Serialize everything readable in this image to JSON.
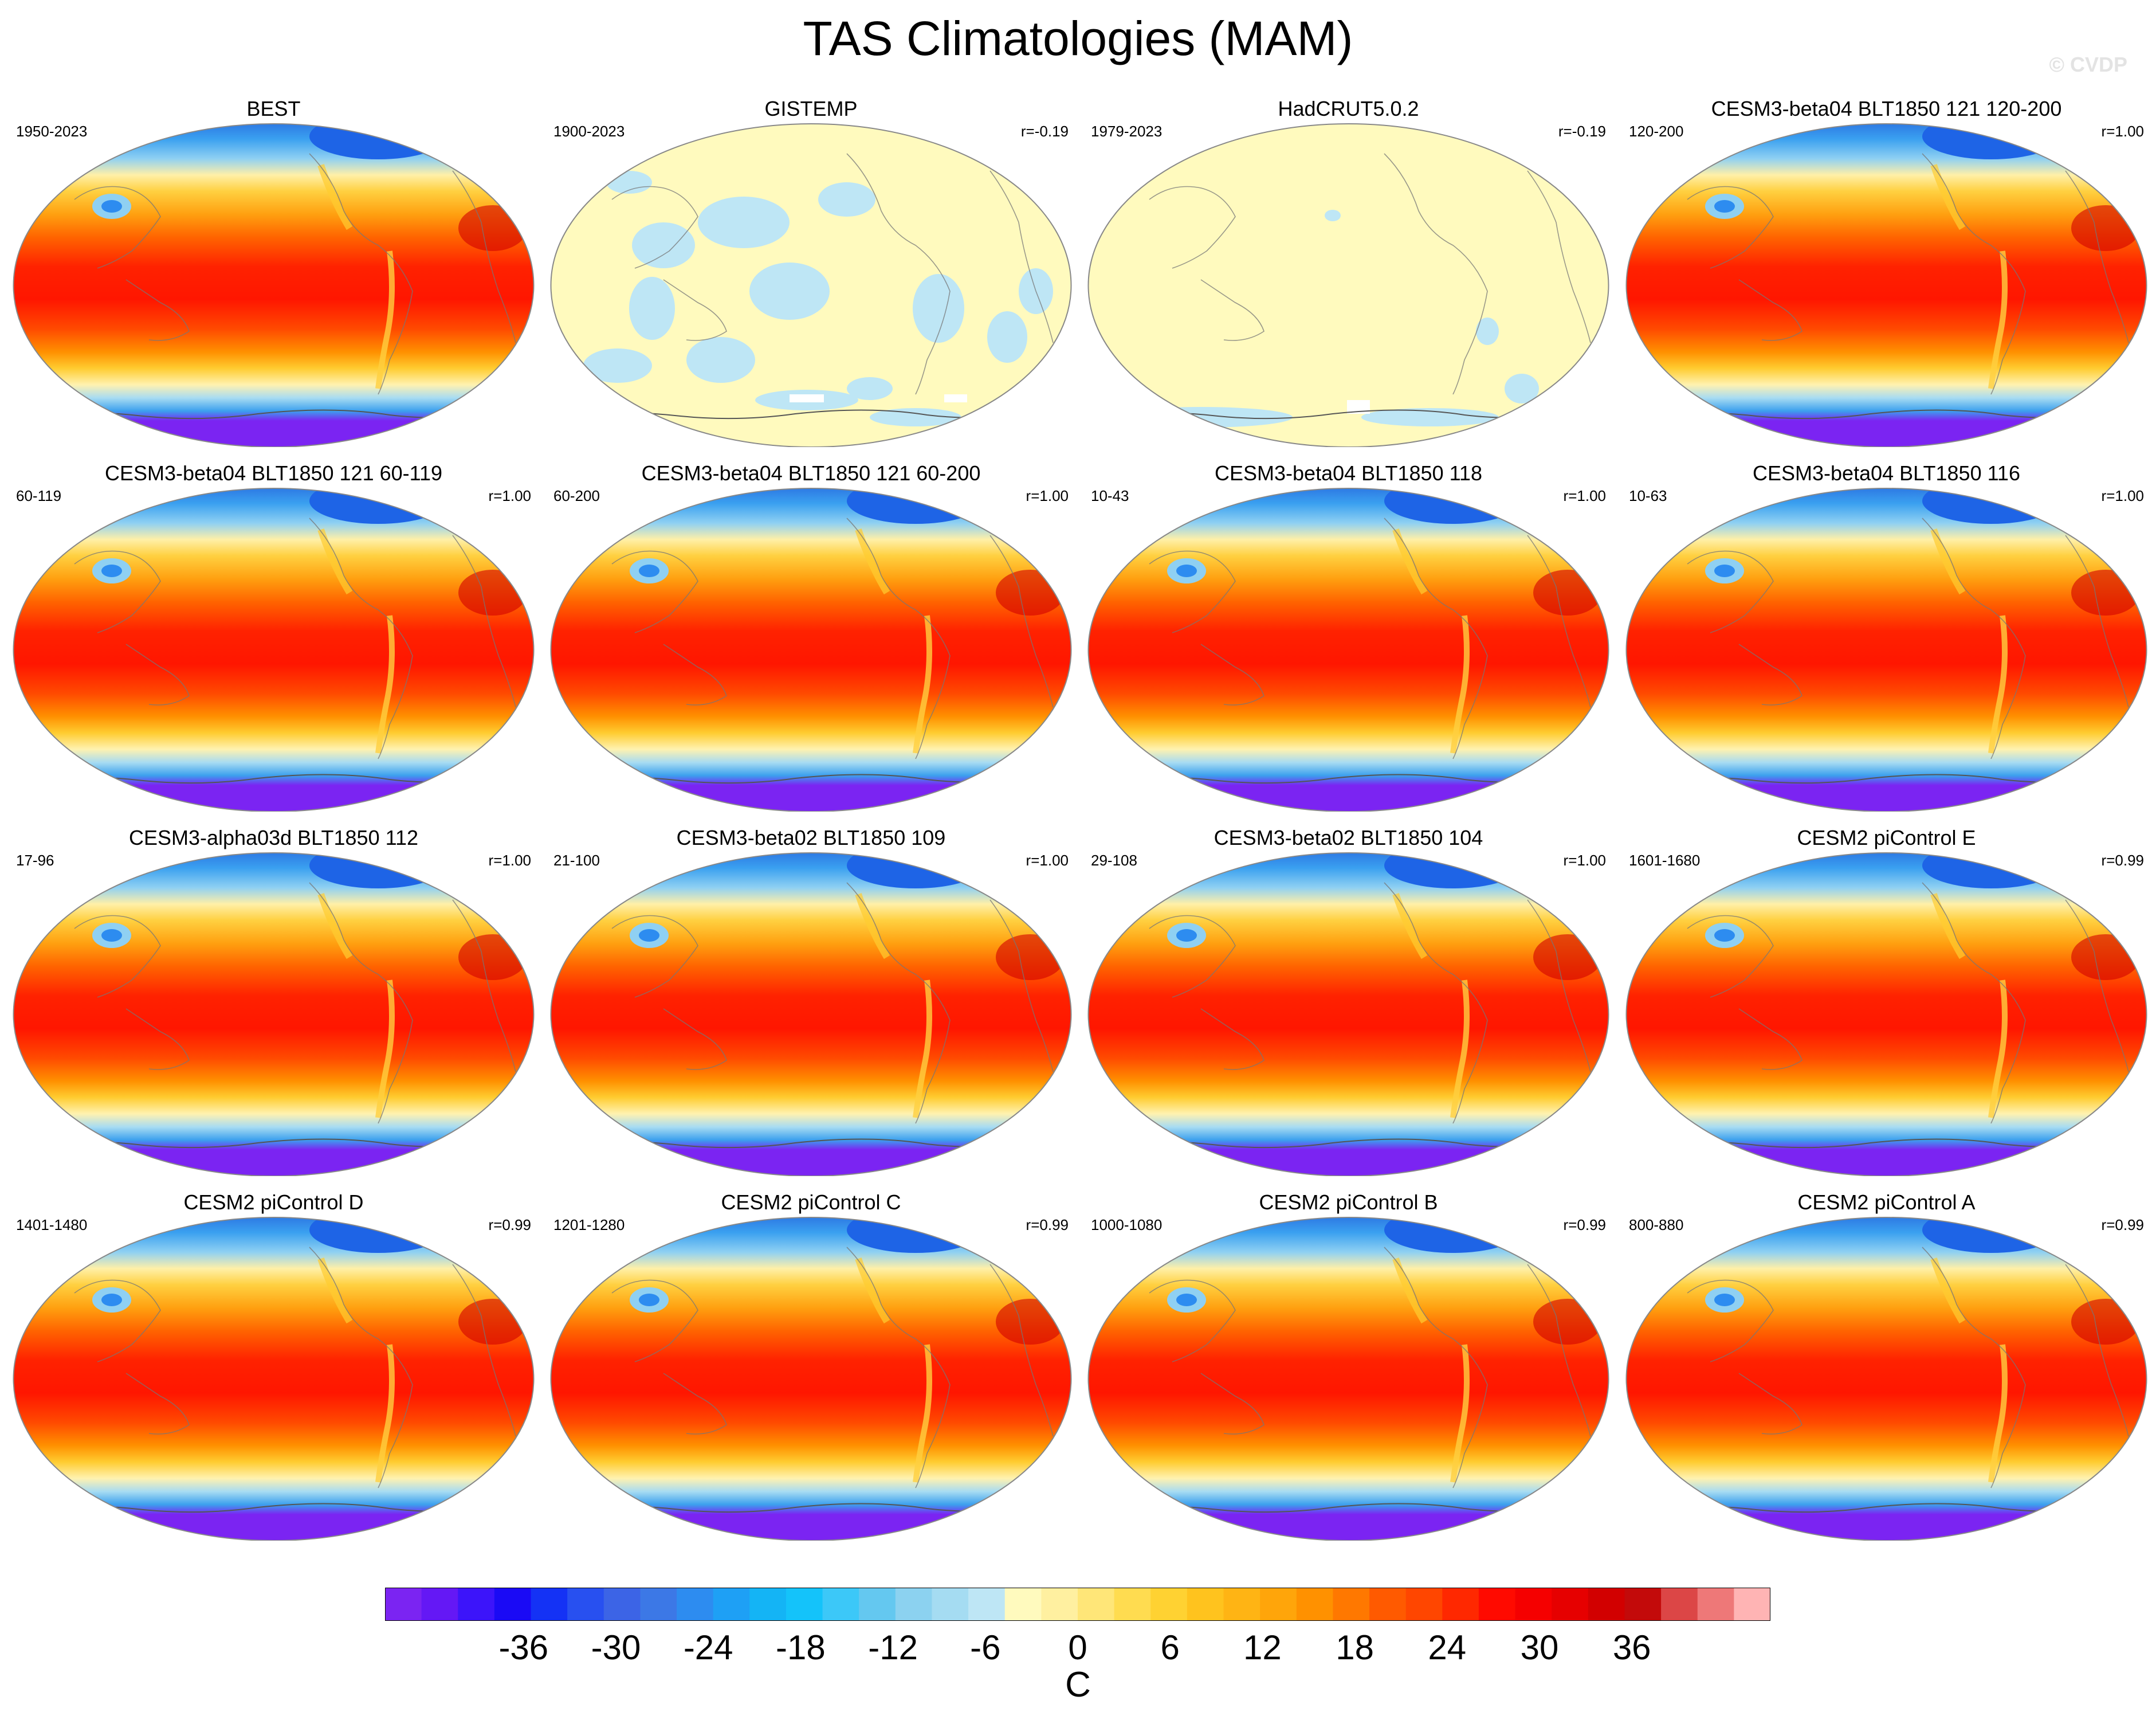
{
  "title": "TAS Climatologies (MAM)",
  "watermark": "© CVDP",
  "panels": [
    {
      "title": "BEST",
      "period": "1950-2023",
      "r": "",
      "style": "model"
    },
    {
      "title": "GISTEMP",
      "period": "1900-2023",
      "r": "r=-0.19",
      "style": "gistemp"
    },
    {
      "title": "HadCRUT5.0.2",
      "period": "1979-2023",
      "r": "r=-0.19",
      "style": "hadcrut"
    },
    {
      "title": "CESM3-beta04 BLT1850 121 120-200",
      "period": "120-200",
      "r": "r=1.00",
      "style": "model"
    },
    {
      "title": "CESM3-beta04 BLT1850 121 60-119",
      "period": "60-119",
      "r": "r=1.00",
      "style": "model"
    },
    {
      "title": "CESM3-beta04 BLT1850 121 60-200",
      "period": "60-200",
      "r": "r=1.00",
      "style": "model"
    },
    {
      "title": "CESM3-beta04 BLT1850 118",
      "period": "10-43",
      "r": "r=1.00",
      "style": "model"
    },
    {
      "title": "CESM3-beta04 BLT1850 116",
      "period": "10-63",
      "r": "r=1.00",
      "style": "model"
    },
    {
      "title": "CESM3-alpha03d BLT1850 112",
      "period": "17-96",
      "r": "r=1.00",
      "style": "model"
    },
    {
      "title": "CESM3-beta02 BLT1850 109",
      "period": "21-100",
      "r": "r=1.00",
      "style": "model"
    },
    {
      "title": "CESM3-beta02 BLT1850 104",
      "period": "29-108",
      "r": "r=1.00",
      "style": "model"
    },
    {
      "title": "CESM2 piControl E",
      "period": "1601-1680",
      "r": "r=0.99",
      "style": "model"
    },
    {
      "title": "CESM2 piControl D",
      "period": "1401-1480",
      "r": "r=0.99",
      "style": "model"
    },
    {
      "title": "CESM2 piControl C",
      "period": "1201-1280",
      "r": "r=0.99",
      "style": "model"
    },
    {
      "title": "CESM2 piControl B",
      "period": "1000-1080",
      "r": "r=0.99",
      "style": "model"
    },
    {
      "title": "CESM2 piControl A",
      "period": "800-880",
      "r": "r=0.99",
      "style": "model"
    }
  ],
  "colorbar": {
    "colors": [
      "#7b24f2",
      "#6418f5",
      "#3c14fa",
      "#1a0af5",
      "#1432f5",
      "#2850f0",
      "#3c64e6",
      "#3c78e6",
      "#2d8cf0",
      "#1ea0f5",
      "#14b4f5",
      "#14c3fa",
      "#3cc8f8",
      "#64c8f0",
      "#8cd2f0",
      "#a5dcf2",
      "#bee6f5",
      "#fffabe",
      "#fff0a0",
      "#ffe678",
      "#ffdc50",
      "#ffd232",
      "#ffc31e",
      "#ffb414",
      "#ffa50a",
      "#ff9100",
      "#ff7800",
      "#ff5a00",
      "#ff4600",
      "#ff2800",
      "#ff0a00",
      "#f50000",
      "#e60000",
      "#d20000",
      "#c30a0a",
      "#dc4646",
      "#ee7878",
      "#ffb4b4"
    ],
    "ticks": [
      "-36",
      "-30",
      "-24",
      "-18",
      "-12",
      "-6",
      "0",
      "6",
      "12",
      "18",
      "24",
      "30",
      "36"
    ],
    "tick_values": [
      -36,
      -30,
      -24,
      -18,
      -12,
      -6,
      0,
      6,
      12,
      18,
      24,
      30,
      36
    ],
    "min": -45,
    "max": 45,
    "unit": "C"
  }
}
